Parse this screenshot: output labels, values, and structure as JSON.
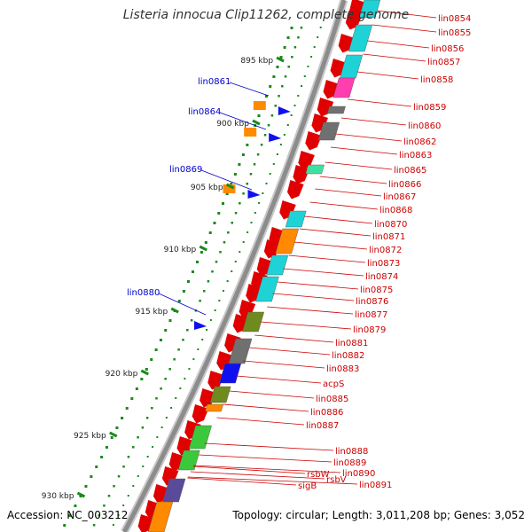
{
  "title": "Listeria innocua Clip11262, complete genome",
  "accession": "Accession: NC_003212",
  "topology": "Topology: circular; Length: 3,011,208 bp; Genes: 3,052",
  "kbp_ticks": [
    "895 kbp",
    "900 kbp",
    "905 kbp",
    "910 kbp",
    "915 kbp",
    "920 kbp",
    "925 kbp",
    "930 kbp"
  ],
  "right_labels": [
    "lin0854",
    "lin0855",
    "lin0856",
    "lin0857",
    "lin0858",
    "lin0859",
    "lin0860",
    "lin0862",
    "lin0863",
    "lin0865",
    "lin0866",
    "lin0867",
    "lin0868",
    "lin0870",
    "lin0871",
    "lin0872",
    "lin0873",
    "lin0874",
    "lin0875",
    "lin0876",
    "lin0877",
    "lin0879",
    "lin0881",
    "lin0882",
    "lin0883",
    "acpS",
    "lin0885",
    "lin0886",
    "lin0887",
    "lin0888",
    "lin0889",
    "lin0890",
    "lin0891",
    "rsbV",
    "rsbW",
    "sigB"
  ],
  "left_labels": [
    "lin0861",
    "lin0864",
    "lin0869",
    "lin0880"
  ],
  "colors": {
    "backbone": "#8c8c8c",
    "gene_arrow": "#e00000",
    "right_label": "#cc0000",
    "left_label": "#0000cc",
    "tick": "#1a8a1a",
    "cyan": "#1fd2d6",
    "orange": "#ff8a00",
    "olive": "#6f8a1f",
    "gray": "#707070",
    "blue": "#1010ee",
    "green": "#3cc83c",
    "purple": "#5a4a9a",
    "magenta": "#ff3fb0",
    "teal": "#3ee0a0"
  }
}
